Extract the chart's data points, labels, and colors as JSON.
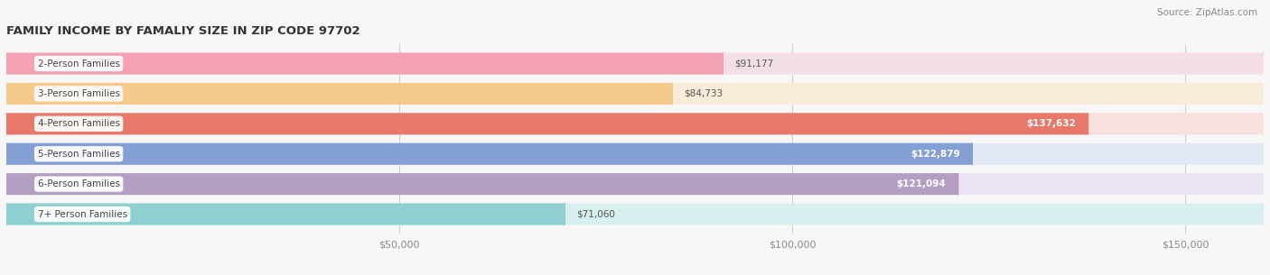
{
  "title": "FAMILY INCOME BY FAMALIY SIZE IN ZIP CODE 97702",
  "source": "Source: ZipAtlas.com",
  "categories": [
    "2-Person Families",
    "3-Person Families",
    "4-Person Families",
    "5-Person Families",
    "6-Person Families",
    "7+ Person Families"
  ],
  "values": [
    91177,
    84733,
    137632,
    122879,
    121094,
    71060
  ],
  "bar_colors": [
    "#F4A0B5",
    "#F5C98A",
    "#E8796A",
    "#849FD4",
    "#B49EC4",
    "#8ECFCF"
  ],
  "bg_colors": [
    "#F2E0E6",
    "#F8ECD8",
    "#F7E0DE",
    "#E0E8F5",
    "#EAE4F2",
    "#D8EFEF"
  ],
  "value_labels": [
    "$91,177",
    "$84,733",
    "$137,632",
    "$122,879",
    "$121,094",
    "$71,060"
  ],
  "label_inside": [
    false,
    false,
    true,
    true,
    true,
    false
  ],
  "xlim": [
    0,
    160000
  ],
  "xticks": [
    50000,
    100000,
    150000
  ],
  "xticklabels": [
    "$50,000",
    "$100,000",
    "$150,000"
  ],
  "figsize": [
    14.06,
    3.05
  ],
  "dpi": 100,
  "background": "#F7F7F7"
}
